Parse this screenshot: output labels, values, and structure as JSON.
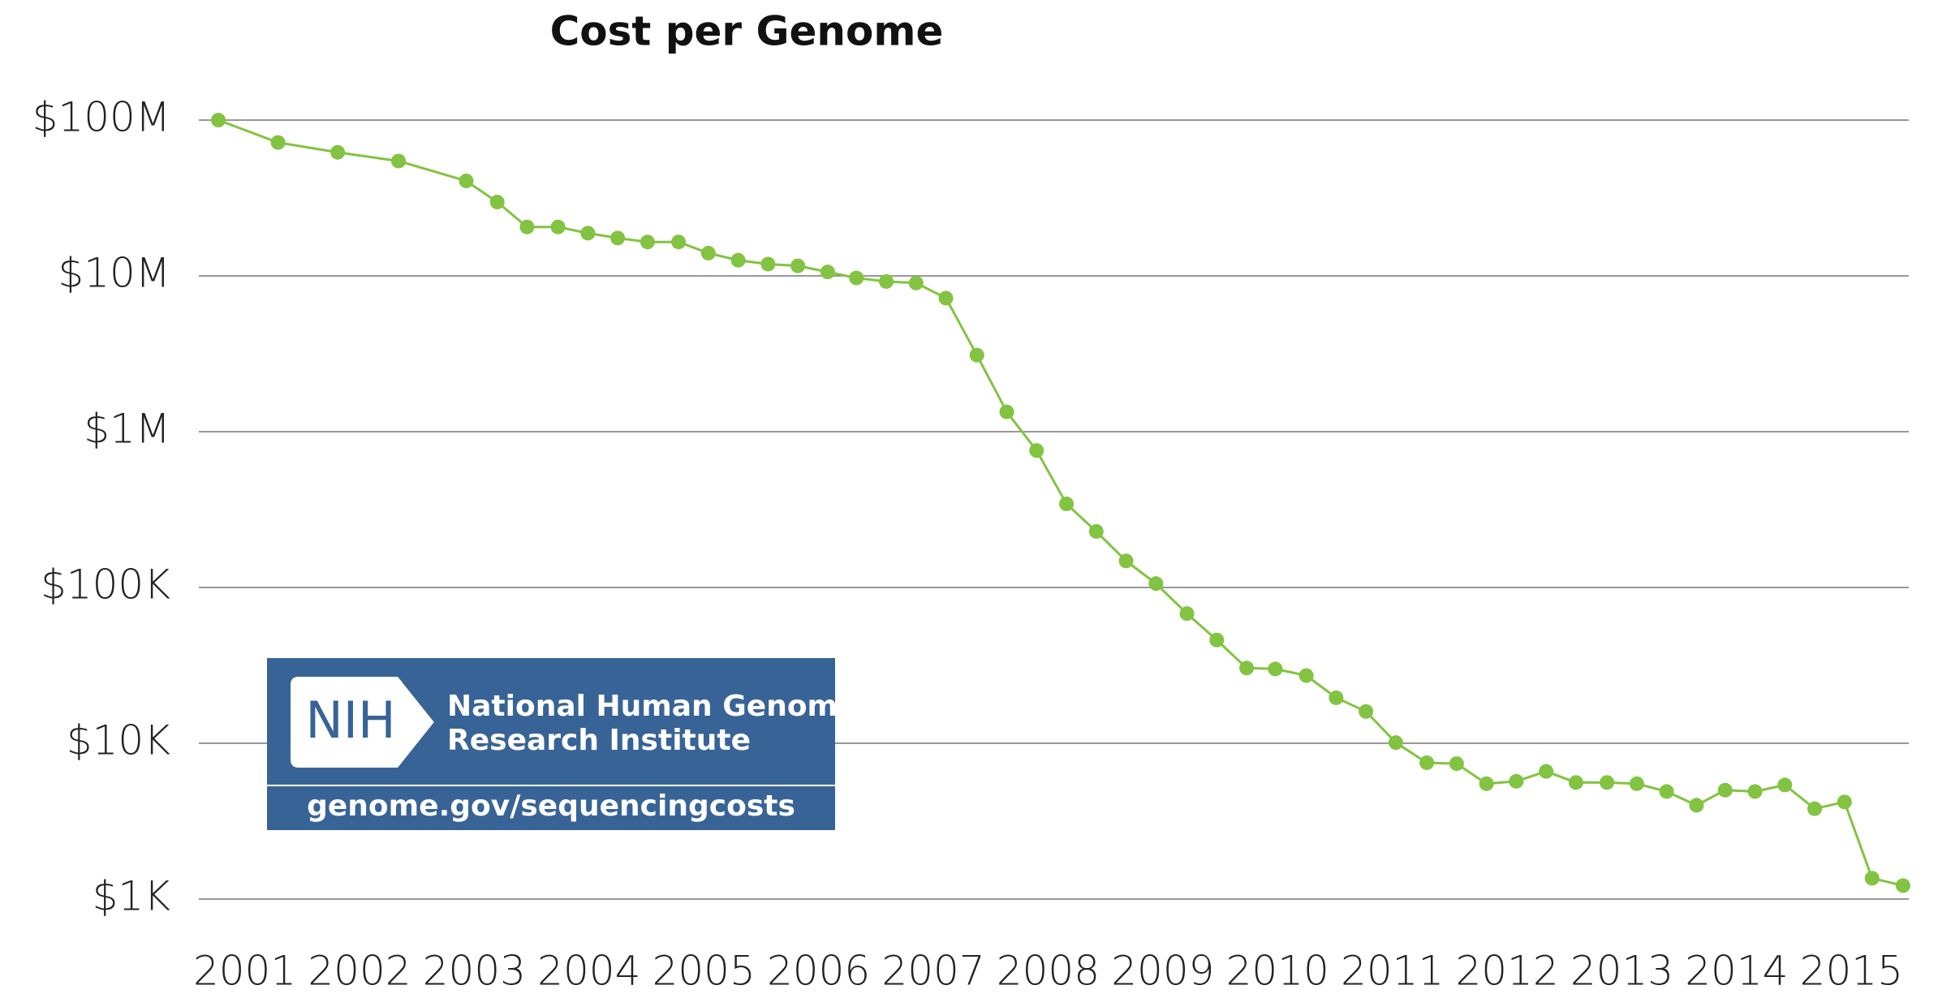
{
  "chart_data": {
    "type": "line",
    "title": "Cost per Genome",
    "log_scale": true,
    "grid": true,
    "color": "#82c341",
    "x": [
      2000.77,
      2001.29,
      2001.81,
      2002.34,
      2002.93,
      2003.2,
      2003.46,
      2003.73,
      2003.99,
      2004.25,
      2004.51,
      2004.78,
      2005.04,
      2005.3,
      2005.56,
      2005.82,
      2006.08,
      2006.33,
      2006.59,
      2006.85,
      2007.11,
      2007.38,
      2007.64,
      2007.9,
      2008.16,
      2008.42,
      2008.68,
      2008.94,
      2009.21,
      2009.47,
      2009.73,
      2009.98,
      2010.25,
      2010.51,
      2010.77,
      2011.03,
      2011.3,
      2011.56,
      2011.82,
      2012.08,
      2012.34,
      2012.6,
      2012.87,
      2013.13,
      2013.39,
      2013.65,
      2013.9,
      2014.16,
      2014.42,
      2014.68,
      2014.94,
      2015.18,
      2015.45
    ],
    "values": [
      100000000,
      71800000,
      62100000,
      54600000,
      40700000,
      29800000,
      20600000,
      20600000,
      18800000,
      17500000,
      16500000,
      16500000,
      14000000,
      12600000,
      11900000,
      11600000,
      10600000,
      9700000,
      9200000,
      9000000,
      7200000,
      3100000,
      1340000,
      757000,
      344000,
      229000,
      148000,
      106000,
      68000,
      46000,
      30400,
      30000,
      27200,
      19600,
      16000,
      10100,
      7500,
      7400,
      5500,
      5700,
      6600,
      5600,
      5600,
      5500,
      4900,
      4000,
      5000,
      4900,
      5400,
      3800,
      4200,
      1360,
      1220
    ],
    "xlim": [
      2000.6,
      2015.5
    ],
    "xticks": [
      2001,
      2002,
      2003,
      2004,
      2005,
      2006,
      2007,
      2008,
      2009,
      2010,
      2011,
      2012,
      2013,
      2014,
      2015
    ],
    "ylim": [
      1000,
      100000000
    ],
    "yticks": [
      {
        "value": 1000,
        "label": "$1K"
      },
      {
        "value": 10000,
        "label": "$10K"
      },
      {
        "value": 100000,
        "label": "$100K"
      },
      {
        "value": 1000000,
        "label": "$1M"
      },
      {
        "value": 10000000,
        "label": "$10M"
      },
      {
        "value": 100000000,
        "label": "$100M"
      }
    ]
  },
  "logo": {
    "mark": "NIH",
    "line1": "National Human Genome",
    "line2": "Research Institute",
    "url": "genome.gov/sequencingcosts"
  }
}
